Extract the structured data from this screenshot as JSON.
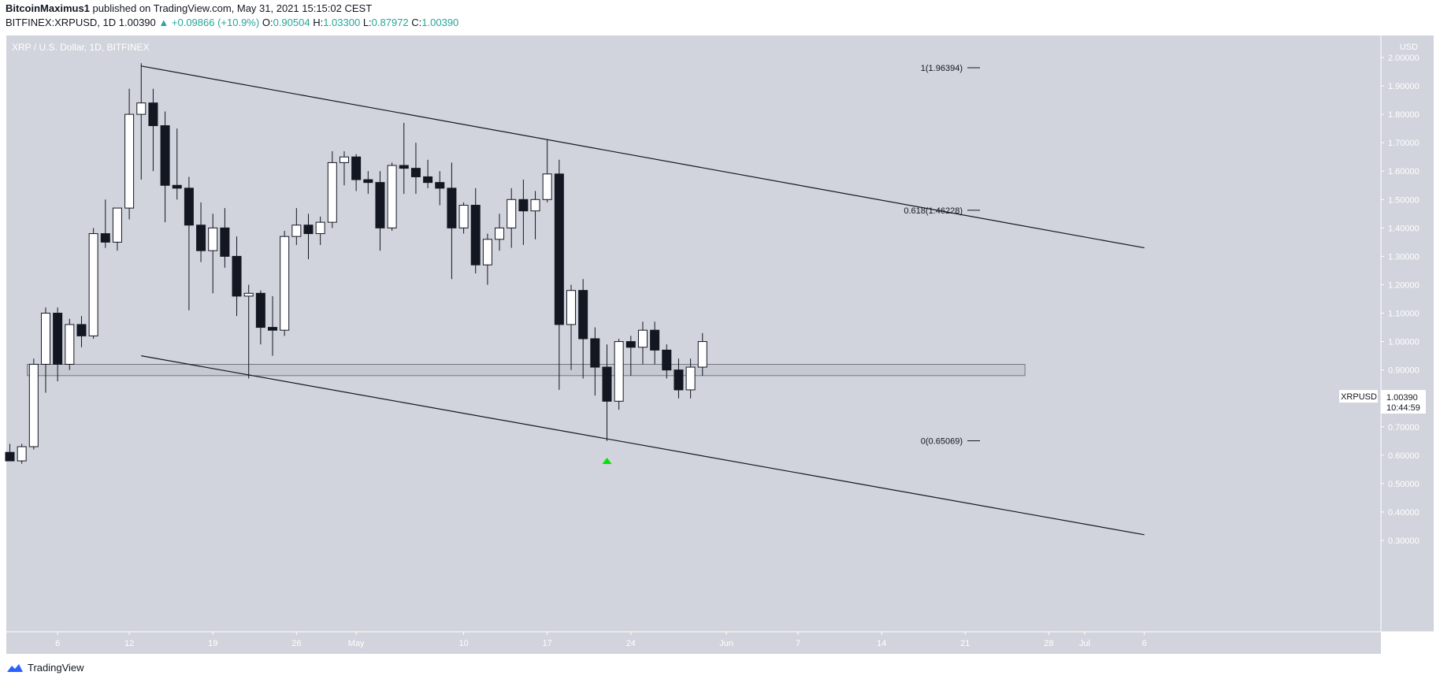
{
  "header": {
    "author": "BitcoinMaximus1",
    "published_text": "published on TradingView.com, May 31, 2021 15:15:02 CEST",
    "symbol_interval": "BITFINEX:XRPUSD, 1D",
    "last": "1.00390",
    "change": "+0.09866 (+10.9%)",
    "o_label": "O:",
    "o": "0.90504",
    "h_label": "H:",
    "h": "1.03300",
    "l_label": "L:",
    "l": "0.87972",
    "c_label": "C:",
    "c": "1.00390"
  },
  "chart_label": "XRP / U.S. Dollar, 1D, BITFINEX",
  "axis_currency": "USD",
  "price_tag": {
    "symbol": "XRPUSD",
    "price": "1.00390",
    "countdown": "10:44:59"
  },
  "footer": {
    "brand": "TradingView"
  },
  "colors": {
    "background": "#d1d4dc",
    "up_fill": "#ffffff",
    "down_fill": "#131722",
    "wick": "#131722",
    "marker": "#00e600"
  },
  "chart_data": {
    "type": "candlestick",
    "title": "XRP / U.S. Dollar, 1D, BITFINEX",
    "ylabel": "USD",
    "ylim": [
      0.28,
      2.05
    ],
    "y_ticks": [
      "0.30000",
      "0.40000",
      "0.50000",
      "0.60000",
      "0.70000",
      "0.80000",
      "0.90000",
      "1.00000",
      "1.10000",
      "1.20000",
      "1.30000",
      "1.40000",
      "1.50000",
      "1.60000",
      "1.70000",
      "1.80000",
      "1.90000",
      "2.00000"
    ],
    "x_ticks": [
      {
        "label": "6",
        "date": "2021-04-06"
      },
      {
        "label": "12",
        "date": "2021-04-12"
      },
      {
        "label": "19",
        "date": "2021-04-19"
      },
      {
        "label": "26",
        "date": "2021-04-26"
      },
      {
        "label": "May",
        "date": "2021-05-01"
      },
      {
        "label": "10",
        "date": "2021-05-10"
      },
      {
        "label": "17",
        "date": "2021-05-17"
      },
      {
        "label": "24",
        "date": "2021-05-24"
      },
      {
        "label": "Jun",
        "date": "2021-06-01"
      },
      {
        "label": "7",
        "date": "2021-06-07"
      },
      {
        "label": "14",
        "date": "2021-06-14"
      },
      {
        "label": "21",
        "date": "2021-06-21"
      },
      {
        "label": "28",
        "date": "2021-06-28"
      },
      {
        "label": "Jul",
        "date": "2021-07-01"
      },
      {
        "label": "6",
        "date": "2021-07-06"
      }
    ],
    "candles": [
      {
        "date": "2021-04-02",
        "o": 0.61,
        "h": 0.64,
        "l": 0.58,
        "c": 0.58
      },
      {
        "date": "2021-04-03",
        "o": 0.58,
        "h": 0.64,
        "l": 0.57,
        "c": 0.63
      },
      {
        "date": "2021-04-04",
        "o": 0.63,
        "h": 0.94,
        "l": 0.62,
        "c": 0.92
      },
      {
        "date": "2021-04-05",
        "o": 0.92,
        "h": 1.12,
        "l": 0.82,
        "c": 1.1
      },
      {
        "date": "2021-04-06",
        "o": 1.1,
        "h": 1.12,
        "l": 0.86,
        "c": 0.92
      },
      {
        "date": "2021-04-07",
        "o": 0.92,
        "h": 1.08,
        "l": 0.9,
        "c": 1.06
      },
      {
        "date": "2021-04-08",
        "o": 1.06,
        "h": 1.09,
        "l": 0.98,
        "c": 1.02
      },
      {
        "date": "2021-04-09",
        "o": 1.02,
        "h": 1.4,
        "l": 1.01,
        "c": 1.38
      },
      {
        "date": "2021-04-10",
        "o": 1.38,
        "h": 1.5,
        "l": 1.33,
        "c": 1.35
      },
      {
        "date": "2021-04-11",
        "o": 1.35,
        "h": 1.47,
        "l": 1.32,
        "c": 1.47
      },
      {
        "date": "2021-04-12",
        "o": 1.47,
        "h": 1.89,
        "l": 1.43,
        "c": 1.8
      },
      {
        "date": "2021-04-13",
        "o": 1.8,
        "h": 1.98,
        "l": 1.57,
        "c": 1.84
      },
      {
        "date": "2021-04-14",
        "o": 1.84,
        "h": 1.89,
        "l": 1.6,
        "c": 1.76
      },
      {
        "date": "2021-04-15",
        "o": 1.76,
        "h": 1.81,
        "l": 1.42,
        "c": 1.55
      },
      {
        "date": "2021-04-16",
        "o": 1.55,
        "h": 1.75,
        "l": 1.5,
        "c": 1.54
      },
      {
        "date": "2021-04-17",
        "o": 1.54,
        "h": 1.58,
        "l": 1.11,
        "c": 1.41
      },
      {
        "date": "2021-04-18",
        "o": 1.41,
        "h": 1.49,
        "l": 1.28,
        "c": 1.32
      },
      {
        "date": "2021-04-19",
        "o": 1.32,
        "h": 1.45,
        "l": 1.17,
        "c": 1.4
      },
      {
        "date": "2021-04-20",
        "o": 1.4,
        "h": 1.47,
        "l": 1.26,
        "c": 1.3
      },
      {
        "date": "2021-04-21",
        "o": 1.3,
        "h": 1.37,
        "l": 1.09,
        "c": 1.16
      },
      {
        "date": "2021-04-22",
        "o": 1.16,
        "h": 1.2,
        "l": 0.87,
        "c": 1.17
      },
      {
        "date": "2021-04-23",
        "o": 1.17,
        "h": 1.18,
        "l": 0.99,
        "c": 1.05
      },
      {
        "date": "2021-04-24",
        "o": 1.05,
        "h": 1.16,
        "l": 0.95,
        "c": 1.04
      },
      {
        "date": "2021-04-25",
        "o": 1.04,
        "h": 1.39,
        "l": 1.02,
        "c": 1.37
      },
      {
        "date": "2021-04-26",
        "o": 1.37,
        "h": 1.47,
        "l": 1.34,
        "c": 1.41
      },
      {
        "date": "2021-04-27",
        "o": 1.41,
        "h": 1.45,
        "l": 1.29,
        "c": 1.38
      },
      {
        "date": "2021-04-28",
        "o": 1.38,
        "h": 1.44,
        "l": 1.34,
        "c": 1.42
      },
      {
        "date": "2021-04-29",
        "o": 1.42,
        "h": 1.67,
        "l": 1.4,
        "c": 1.63
      },
      {
        "date": "2021-04-30",
        "o": 1.63,
        "h": 1.67,
        "l": 1.55,
        "c": 1.65
      },
      {
        "date": "2021-05-01",
        "o": 1.65,
        "h": 1.66,
        "l": 1.53,
        "c": 1.57
      },
      {
        "date": "2021-05-02",
        "o": 1.57,
        "h": 1.6,
        "l": 1.52,
        "c": 1.56
      },
      {
        "date": "2021-05-03",
        "o": 1.56,
        "h": 1.6,
        "l": 1.32,
        "c": 1.4
      },
      {
        "date": "2021-05-04",
        "o": 1.4,
        "h": 1.63,
        "l": 1.39,
        "c": 1.62
      },
      {
        "date": "2021-05-05",
        "o": 1.62,
        "h": 1.77,
        "l": 1.52,
        "c": 1.61
      },
      {
        "date": "2021-05-06",
        "o": 1.61,
        "h": 1.7,
        "l": 1.52,
        "c": 1.58
      },
      {
        "date": "2021-05-07",
        "o": 1.58,
        "h": 1.64,
        "l": 1.54,
        "c": 1.56
      },
      {
        "date": "2021-05-08",
        "o": 1.56,
        "h": 1.6,
        "l": 1.48,
        "c": 1.54
      },
      {
        "date": "2021-05-09",
        "o": 1.54,
        "h": 1.63,
        "l": 1.22,
        "c": 1.4
      },
      {
        "date": "2021-05-10",
        "o": 1.4,
        "h": 1.49,
        "l": 1.38,
        "c": 1.48
      },
      {
        "date": "2021-05-11",
        "o": 1.48,
        "h": 1.54,
        "l": 1.24,
        "c": 1.27
      },
      {
        "date": "2021-05-12",
        "o": 1.27,
        "h": 1.38,
        "l": 1.2,
        "c": 1.36
      },
      {
        "date": "2021-05-13",
        "o": 1.36,
        "h": 1.45,
        "l": 1.32,
        "c": 1.4
      },
      {
        "date": "2021-05-14",
        "o": 1.4,
        "h": 1.54,
        "l": 1.33,
        "c": 1.5
      },
      {
        "date": "2021-05-15",
        "o": 1.5,
        "h": 1.57,
        "l": 1.34,
        "c": 1.46
      },
      {
        "date": "2021-05-16",
        "o": 1.46,
        "h": 1.53,
        "l": 1.36,
        "c": 1.5
      },
      {
        "date": "2021-05-17",
        "o": 1.5,
        "h": 1.71,
        "l": 1.49,
        "c": 1.59
      },
      {
        "date": "2021-05-18",
        "o": 1.59,
        "h": 1.64,
        "l": 0.83,
        "c": 1.06
      },
      {
        "date": "2021-05-19",
        "o": 1.06,
        "h": 1.2,
        "l": 0.9,
        "c": 1.18
      },
      {
        "date": "2021-05-20",
        "o": 1.18,
        "h": 1.22,
        "l": 0.87,
        "c": 1.01
      },
      {
        "date": "2021-05-21",
        "o": 1.01,
        "h": 1.05,
        "l": 0.81,
        "c": 0.91
      },
      {
        "date": "2021-05-22",
        "o": 0.91,
        "h": 0.99,
        "l": 0.65,
        "c": 0.79
      },
      {
        "date": "2021-05-23",
        "o": 0.79,
        "h": 1.01,
        "l": 0.76,
        "c": 1.0
      },
      {
        "date": "2021-05-24",
        "o": 1.0,
        "h": 1.02,
        "l": 0.88,
        "c": 0.98
      },
      {
        "date": "2021-05-25",
        "o": 0.98,
        "h": 1.07,
        "l": 0.92,
        "c": 1.04
      },
      {
        "date": "2021-05-26",
        "o": 1.04,
        "h": 1.07,
        "l": 0.92,
        "c": 0.97
      },
      {
        "date": "2021-05-27",
        "o": 0.97,
        "h": 0.99,
        "l": 0.87,
        "c": 0.9
      },
      {
        "date": "2021-05-28",
        "o": 0.9,
        "h": 0.94,
        "l": 0.8,
        "c": 0.83
      },
      {
        "date": "2021-05-29",
        "o": 0.83,
        "h": 0.94,
        "l": 0.8,
        "c": 0.91
      },
      {
        "date": "2021-05-30",
        "o": 0.91,
        "h": 1.03,
        "l": 0.88,
        "c": 1.0
      }
    ],
    "fib_levels": [
      {
        "label": "1(1.96394)",
        "value": 1.96394
      },
      {
        "label": "0.618(1.46228)",
        "value": 1.46228
      },
      {
        "label": "0(0.65069)",
        "value": 0.65069
      }
    ],
    "support_zone": {
      "from": 0.88,
      "to": 0.92,
      "start": "2021-04-03",
      "end": "2021-06-26"
    },
    "channel_upper": [
      {
        "date": "2021-04-13",
        "value": 1.97
      },
      {
        "date": "2021-07-06",
        "value": 1.33
      }
    ],
    "channel_lower": [
      {
        "date": "2021-04-13",
        "value": 0.95
      },
      {
        "date": "2021-07-06",
        "value": 0.32
      }
    ],
    "marker": {
      "date": "2021-05-22",
      "value": 0.58,
      "shape": "up-triangle"
    }
  }
}
